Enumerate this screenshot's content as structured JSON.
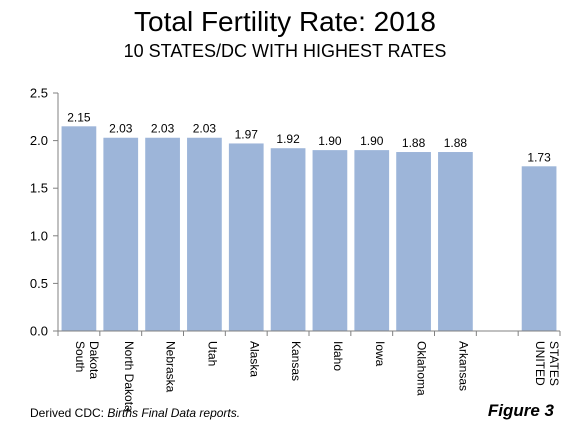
{
  "header": {
    "title": "Total Fertility Rate: 2018",
    "subtitle": "10 STATES/DC WITH HIGHEST RATES"
  },
  "footer": {
    "source_prefix": "Derived  CDC: ",
    "source_italic": "Births Final Data reports.",
    "figure_label": "Figure 3"
  },
  "colors": {
    "bar": "#9db5d9",
    "axis": "#808080",
    "text": "#000000"
  },
  "chart_data": {
    "type": "bar",
    "title": "Total Fertility Rate: 2018",
    "subtitle": "10 STATES/DC WITH HIGHEST RATES",
    "categories": [
      "South Dakota",
      "North Dakota",
      "Nebraska",
      "Utah",
      "Alaska",
      "Kansas",
      "Idaho",
      "Iowa",
      "Oklahoma",
      "Arkansas",
      "",
      "UNITED STATES"
    ],
    "category_lines": [
      [
        "South",
        "Dakota"
      ],
      [
        "North Dakota"
      ],
      [
        "Nebraska"
      ],
      [
        "Utah"
      ],
      [
        "Alaska"
      ],
      [
        "Kansas"
      ],
      [
        "Idaho"
      ],
      [
        "Iowa"
      ],
      [
        "Oklahoma"
      ],
      [
        "Arkansas"
      ],
      [],
      [
        "UNITED",
        "STATES"
      ]
    ],
    "values": [
      2.15,
      2.03,
      2.03,
      2.03,
      1.97,
      1.92,
      1.9,
      1.9,
      1.88,
      1.88,
      null,
      1.73
    ],
    "value_labels": [
      "2.15",
      "2.03",
      "2.03",
      "2.03",
      "1.97",
      "1.92",
      "1.90",
      "1.90",
      "1.88",
      "1.88",
      "",
      "1.73"
    ],
    "ylim": [
      0,
      2.5
    ],
    "yticks": [
      "0.0",
      "0.5",
      "1.0",
      "1.5",
      "2.0",
      "2.5"
    ],
    "ytick_values": [
      0,
      0.5,
      1.0,
      1.5,
      2.0,
      2.5
    ],
    "xlabel": "",
    "ylabel": "",
    "grid": false,
    "legend": "none"
  }
}
